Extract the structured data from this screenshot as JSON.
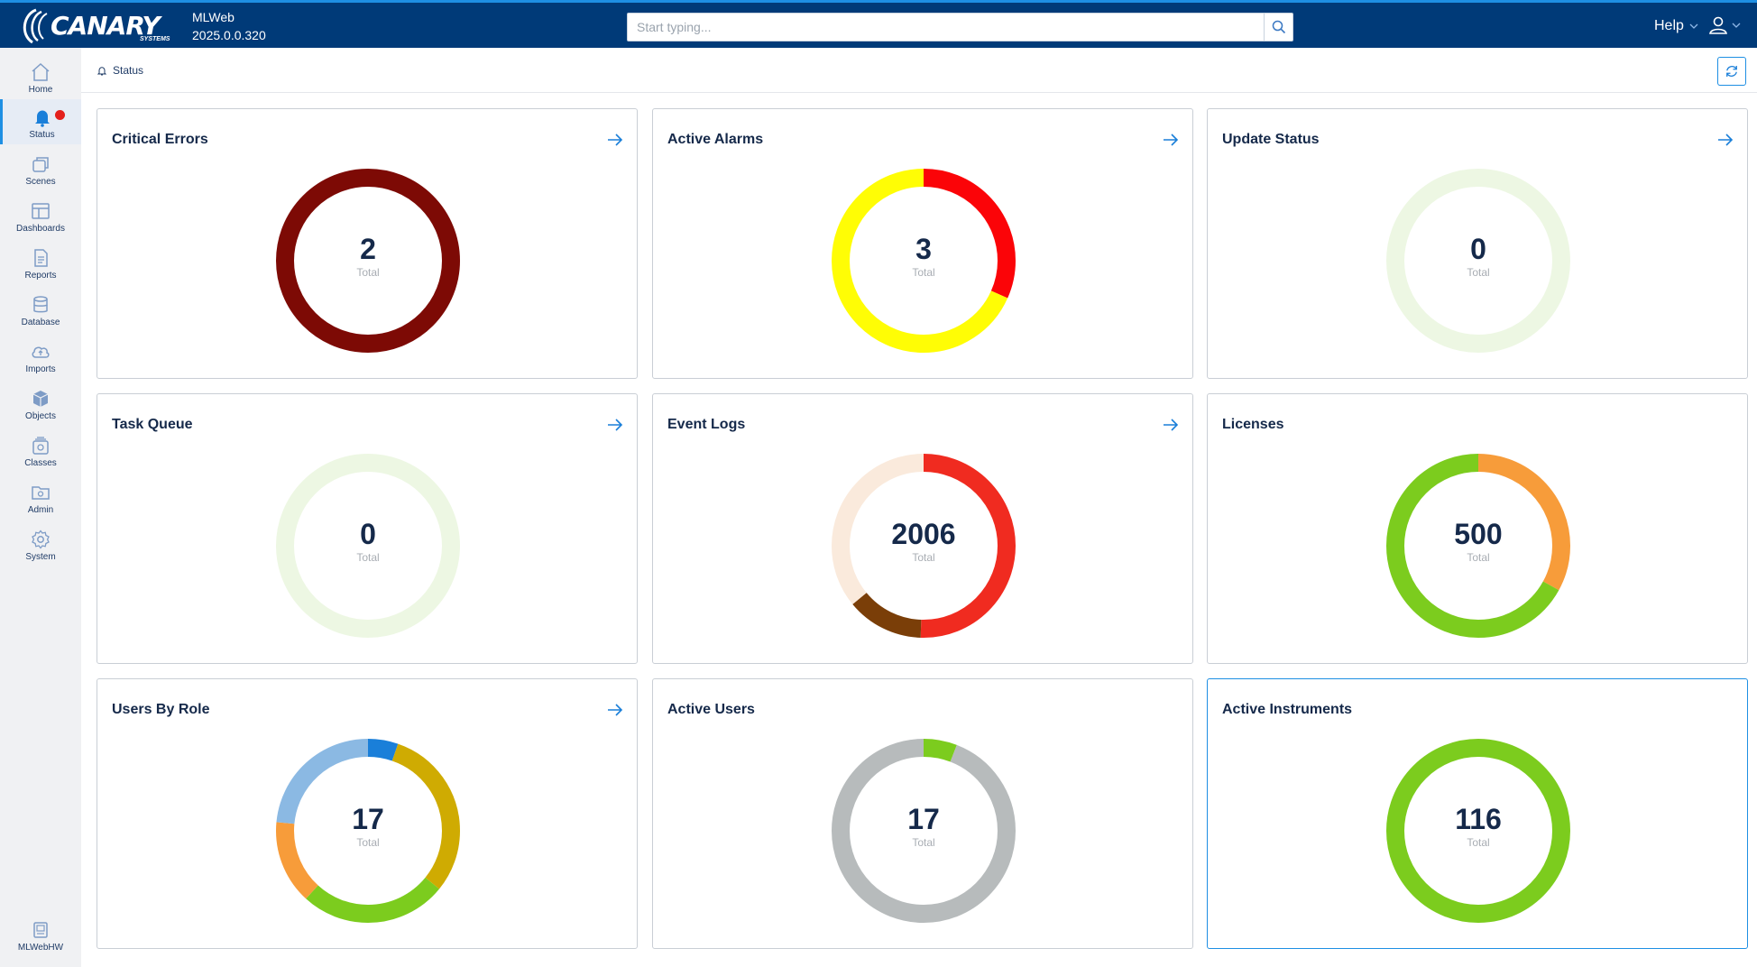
{
  "header": {
    "logo_text": "CANARY",
    "logo_sub": "SYSTEMS",
    "app_name": "MLWeb",
    "version": "2025.0.0.320",
    "search_placeholder": "Start typing...",
    "help_label": "Help"
  },
  "sidebar": {
    "items": [
      {
        "label": "Home",
        "icon": "home-icon"
      },
      {
        "label": "Status",
        "icon": "bell-icon",
        "active": true
      },
      {
        "label": "Scenes",
        "icon": "scenes-icon"
      },
      {
        "label": "Dashboards",
        "icon": "dashboard-icon"
      },
      {
        "label": "Reports",
        "icon": "report-icon"
      },
      {
        "label": "Database",
        "icon": "database-icon"
      },
      {
        "label": "Imports",
        "icon": "cloud-upload-icon"
      },
      {
        "label": "Objects",
        "icon": "cube-icon"
      },
      {
        "label": "Classes",
        "icon": "classes-icon"
      },
      {
        "label": "Admin",
        "icon": "admin-folder-icon"
      },
      {
        "label": "System",
        "icon": "gear-icon"
      }
    ],
    "footer_label": "MLWebHW"
  },
  "breadcrumb": {
    "label": "Status"
  },
  "colors": {
    "brand_navy": "#003a78",
    "accent_blue": "#1e8fe3",
    "empty_ring": "#edf7e3"
  },
  "cards": [
    {
      "title": "Critical Errors",
      "total": "2",
      "total_label": "Total",
      "has_arrow": true,
      "segments": [
        {
          "value": 2,
          "color": "#7d0a05"
        }
      ]
    },
    {
      "title": "Active Alarms",
      "total": "3",
      "total_label": "Total",
      "has_arrow": true,
      "segments": [
        {
          "value": 0.95,
          "color": "#fb0408"
        },
        {
          "value": 2.05,
          "color": "#fffd05"
        }
      ]
    },
    {
      "title": "Update Status",
      "total": "0",
      "total_label": "Total",
      "has_arrow": true,
      "segments": []
    },
    {
      "title": "Task Queue",
      "total": "0",
      "total_label": "Total",
      "has_arrow": true,
      "segments": []
    },
    {
      "title": "Event Logs",
      "total": "2006",
      "total_label": "Total",
      "has_arrow": true,
      "segments": [
        {
          "value": 1013,
          "color": "#f02b20"
        },
        {
          "value": 271,
          "color": "#7a3e08"
        },
        {
          "value": 722,
          "color": "#faeadc"
        }
      ]
    },
    {
      "title": "Licenses",
      "total": "500",
      "total_label": "Total",
      "has_arrow": false,
      "segments": [
        {
          "value": 165,
          "color": "#f79c3a"
        },
        {
          "value": 335,
          "color": "#7ccc1e"
        }
      ]
    },
    {
      "title": "Users By Role",
      "total": "17",
      "total_label": "Total",
      "has_arrow": true,
      "segments": [
        {
          "value": 0.9,
          "color": "#1a7fd9"
        },
        {
          "value": 5.2,
          "color": "#cfab02"
        },
        {
          "value": 4.4,
          "color": "#7ccc1e"
        },
        {
          "value": 2.5,
          "color": "#f79c3a"
        },
        {
          "value": 4.0,
          "color": "#8bb9e3"
        }
      ]
    },
    {
      "title": "Active Users",
      "total": "17",
      "total_label": "Total",
      "has_arrow": false,
      "segments": [
        {
          "value": 1,
          "color": "#7ccc1e"
        },
        {
          "value": 16,
          "color": "#b7bbbc"
        }
      ]
    },
    {
      "title": "Active Instruments",
      "total": "116",
      "total_label": "Total",
      "has_arrow": false,
      "highlighted": true,
      "segments": [
        {
          "value": 116,
          "color": "#7ccc1e"
        }
      ]
    }
  ]
}
